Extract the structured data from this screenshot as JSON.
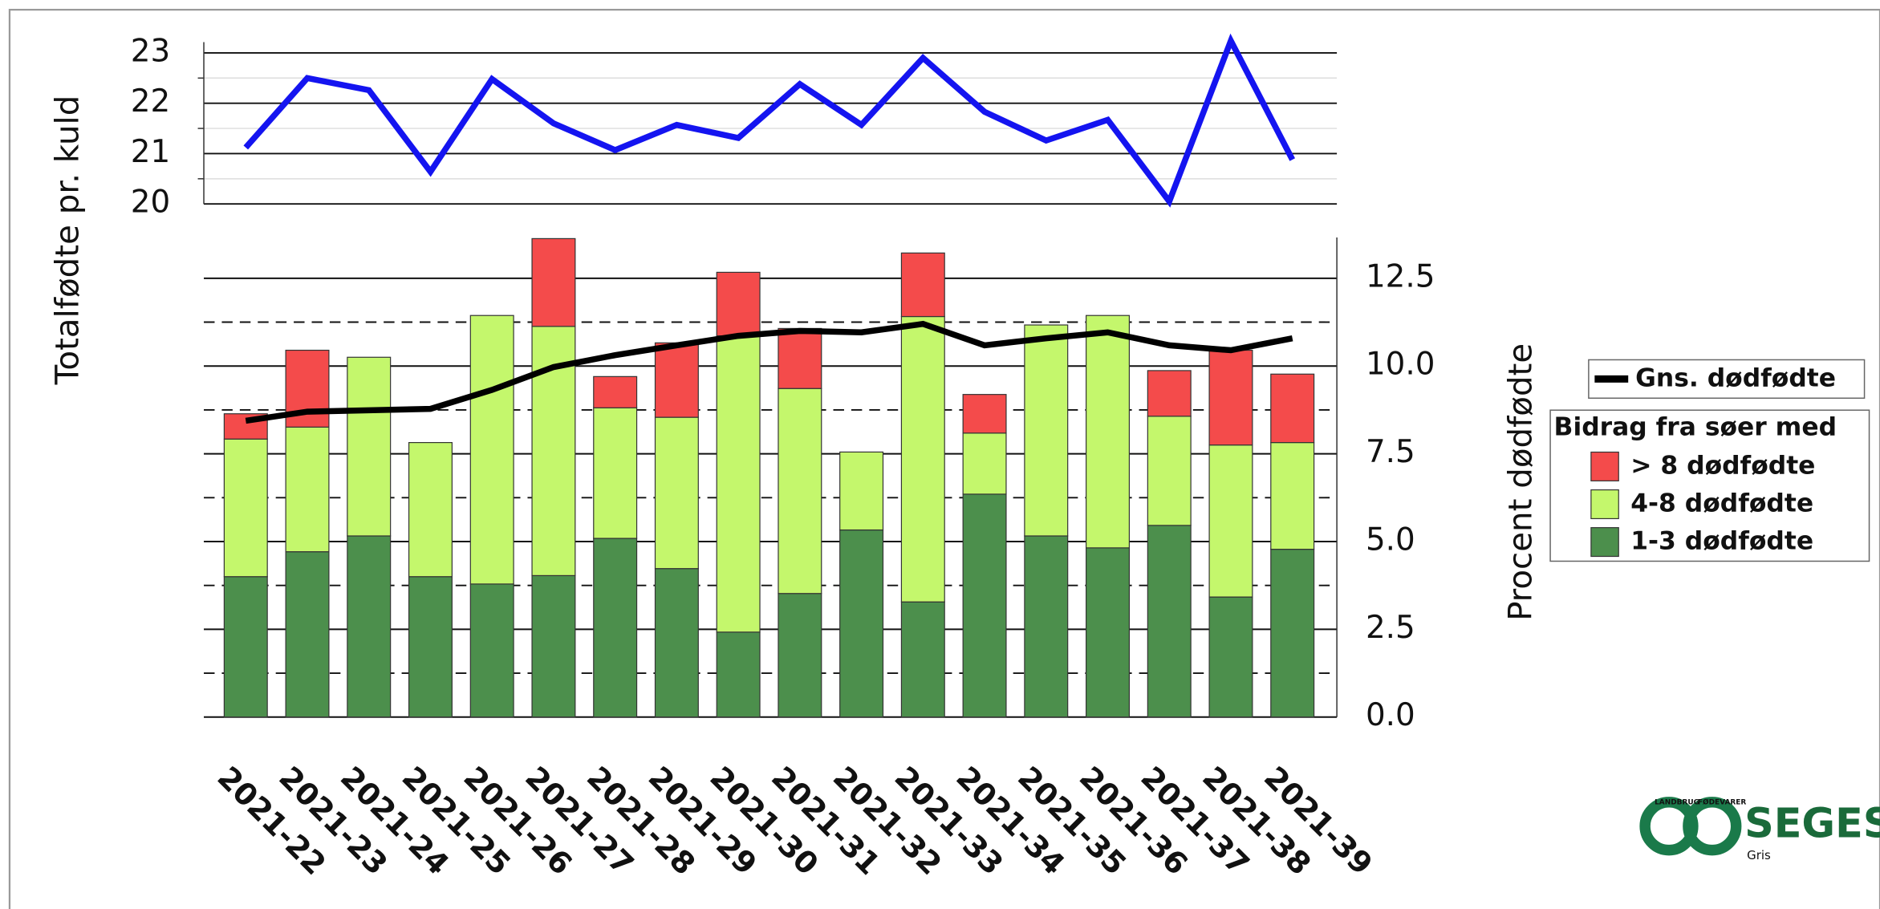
{
  "chart_data": [
    {
      "type": "line",
      "y_label": "Totalfødte pr. kuld",
      "ylim": [
        20,
        23.3
      ],
      "yticks": [
        20,
        21,
        22,
        23
      ],
      "minor_yticks": [
        20.5,
        21.5,
        22.5
      ],
      "grid": true,
      "series": [
        {
          "color": "#1414f0",
          "values": [
            21.12,
            22.5,
            22.26,
            20.64,
            22.48,
            21.6,
            21.07,
            21.57,
            21.31,
            22.38,
            21.57,
            22.9,
            21.83,
            21.26,
            21.67,
            20.05,
            23.24,
            20.88
          ]
        }
      ]
    },
    {
      "type": "bar",
      "stacked": true,
      "y_label": "Procent dødfødte",
      "y_axis_side": "right",
      "categories": [
        "2021-22",
        "2021-23",
        "2021-24",
        "2021-25",
        "2021-26",
        "2021-27",
        "2021-28",
        "2021-29",
        "2021-30",
        "2021-31",
        "2021-32",
        "2021-33",
        "2021-34",
        "2021-35",
        "2021-36",
        "2021-37",
        "2021-38",
        "2021-39"
      ],
      "ylim": [
        0,
        13.75
      ],
      "yticks": [
        {
          "value": 0,
          "label": "0.0"
        },
        2.5,
        {
          "value": 5,
          "label": "5.0"
        },
        7.5,
        {
          "value": 10,
          "label": "10.0"
        },
        12.5
      ],
      "minor_yticks": [
        1.25,
        3.75,
        6.25,
        8.75,
        11.25
      ],
      "grid": true,
      "minor_grid_style": "dashed",
      "legend_title": "Bidrag fra søer med",
      "series": [
        {
          "name": "1-3 dødfødte",
          "color": "#4c8f4c",
          "values": [
            4.0,
            4.71,
            5.16,
            4.0,
            3.79,
            4.03,
            5.09,
            4.23,
            2.42,
            3.52,
            5.33,
            3.28,
            6.35,
            5.16,
            4.82,
            5.46,
            3.42,
            4.78
          ]
        },
        {
          "name": "4-8 dødfødte",
          "color": "#c4f76c",
          "values": [
            3.92,
            3.55,
            5.09,
            3.82,
            7.65,
            7.1,
            3.72,
            4.31,
            8.44,
            5.84,
            2.22,
            8.13,
            1.74,
            6.01,
            6.62,
            3.11,
            4.33,
            3.04
          ]
        },
        {
          "name": "> 8 dødfødte",
          "color": "#f44b4b",
          "values": [
            0.72,
            2.19,
            0,
            0,
            0,
            2.5,
            0.89,
            2.12,
            1.81,
            1.71,
            0,
            1.81,
            1.1,
            0,
            0,
            1.3,
            2.7,
            1.95
          ]
        },
        {
          "name": "Gns. dødfødte",
          "type": "line",
          "color": "#000000",
          "values": [
            8.44,
            8.7,
            8.74,
            8.78,
            9.32,
            9.97,
            10.31,
            10.59,
            10.86,
            11.0,
            10.96,
            11.2,
            10.59,
            10.79,
            10.96,
            10.59,
            10.45,
            10.79
          ]
        }
      ]
    }
  ],
  "logo": {
    "text": "SEGES",
    "subtitle": "Gris",
    "ring_left": "LANDBRUG",
    "ring_right": "FØDEVARER"
  }
}
